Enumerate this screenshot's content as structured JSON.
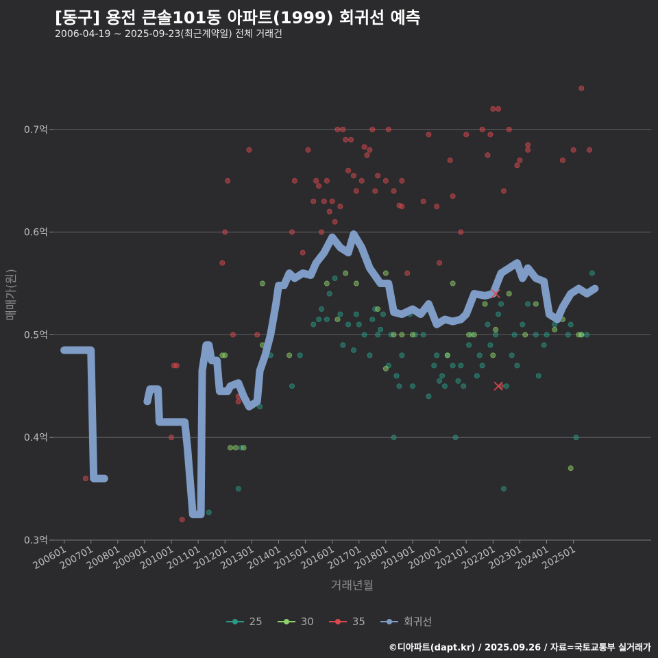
{
  "header": {
    "title": "[동구] 용전 큰솔101동 아파트(1999) 회귀선 예측",
    "subtitle": "2006-04-19 ~ 2025-09-23(최근계약일) 전체 거래건"
  },
  "caption": "©디아파트(dapt.kr) / 2025.09.26 / 자료=국토교통부 실거래가",
  "colors": {
    "background": "#2b2b2d",
    "grid": "#5a5a5c",
    "s25": "#2a9a86",
    "s30": "#8fd16a",
    "s35": "#d94a4f",
    "regression": "#7e9cc6"
  },
  "chart_data": {
    "type": "scatter",
    "xlabel": "거래년월",
    "ylabel": "매매가(원)",
    "x_range": [
      2005.6,
      2027.9
    ],
    "ylim": [
      0.3,
      0.77
    ],
    "grid": "horizontal",
    "legend_position": "bottom",
    "y_ticks": [
      {
        "value": 0.3,
        "label": "0.3억"
      },
      {
        "value": 0.4,
        "label": "0.4억"
      },
      {
        "value": 0.5,
        "label": "0.5억"
      },
      {
        "value": 0.6,
        "label": "0.6억"
      },
      {
        "value": 0.7,
        "label": "0.7억"
      }
    ],
    "x_ticks": [
      {
        "value": 2006.0,
        "label": "200601"
      },
      {
        "value": 2007.0,
        "label": "200701"
      },
      {
        "value": 2008.0,
        "label": "200801"
      },
      {
        "value": 2009.0,
        "label": "200901"
      },
      {
        "value": 2010.0,
        "label": "201001"
      },
      {
        "value": 2011.0,
        "label": "201101"
      },
      {
        "value": 2012.0,
        "label": "201201"
      },
      {
        "value": 2013.0,
        "label": "201301"
      },
      {
        "value": 2014.0,
        "label": "201401"
      },
      {
        "value": 2015.0,
        "label": "201501"
      },
      {
        "value": 2016.0,
        "label": "201601"
      },
      {
        "value": 2017.0,
        "label": "201701"
      },
      {
        "value": 2018.0,
        "label": "201801"
      },
      {
        "value": 2019.0,
        "label": "201901"
      },
      {
        "value": 2020.0,
        "label": "202001"
      },
      {
        "value": 2021.0,
        "label": "202101"
      },
      {
        "value": 2022.0,
        "label": "202201"
      },
      {
        "value": 2023.0,
        "label": "202301"
      },
      {
        "value": 2024.0,
        "label": "202401"
      },
      {
        "value": 2025.0,
        "label": "202501"
      }
    ],
    "legend": [
      {
        "key": "s25",
        "label": "25"
      },
      {
        "key": "s30",
        "label": "30"
      },
      {
        "key": "s35",
        "label": "35"
      },
      {
        "key": "regression",
        "label": "회귀선"
      }
    ],
    "series": [
      {
        "name": "25",
        "points": [
          [
            2011.4,
            0.327
          ],
          [
            2012.5,
            0.35
          ],
          [
            2012.6,
            0.39
          ],
          [
            2013.3,
            0.43
          ],
          [
            2013.7,
            0.48
          ],
          [
            2014.5,
            0.45
          ],
          [
            2014.8,
            0.48
          ],
          [
            2015.3,
            0.51
          ],
          [
            2015.5,
            0.515
          ],
          [
            2015.6,
            0.525
          ],
          [
            2015.8,
            0.515
          ],
          [
            2015.9,
            0.54
          ],
          [
            2016.1,
            0.555
          ],
          [
            2016.3,
            0.52
          ],
          [
            2016.4,
            0.49
          ],
          [
            2016.6,
            0.51
          ],
          [
            2016.8,
            0.485
          ],
          [
            2016.9,
            0.52
          ],
          [
            2017.0,
            0.51
          ],
          [
            2017.2,
            0.5
          ],
          [
            2017.4,
            0.48
          ],
          [
            2017.5,
            0.515
          ],
          [
            2017.6,
            0.525
          ],
          [
            2017.7,
            0.5
          ],
          [
            2017.8,
            0.505
          ],
          [
            2017.9,
            0.52
          ],
          [
            2018.1,
            0.47
          ],
          [
            2018.2,
            0.5
          ],
          [
            2018.3,
            0.4
          ],
          [
            2018.4,
            0.46
          ],
          [
            2018.5,
            0.45
          ],
          [
            2018.6,
            0.48
          ],
          [
            2018.9,
            0.52
          ],
          [
            2019.0,
            0.45
          ],
          [
            2019.1,
            0.5
          ],
          [
            2019.4,
            0.5
          ],
          [
            2019.6,
            0.44
          ],
          [
            2019.8,
            0.47
          ],
          [
            2019.9,
            0.48
          ],
          [
            2020.0,
            0.455
          ],
          [
            2020.1,
            0.46
          ],
          [
            2020.2,
            0.45
          ],
          [
            2020.3,
            0.48
          ],
          [
            2020.5,
            0.47
          ],
          [
            2020.6,
            0.4
          ],
          [
            2020.7,
            0.455
          ],
          [
            2020.8,
            0.47
          ],
          [
            2020.9,
            0.45
          ],
          [
            2021.1,
            0.49
          ],
          [
            2021.2,
            0.5
          ],
          [
            2021.4,
            0.46
          ],
          [
            2021.5,
            0.48
          ],
          [
            2021.6,
            0.47
          ],
          [
            2021.8,
            0.51
          ],
          [
            2021.9,
            0.49
          ],
          [
            2022.1,
            0.5
          ],
          [
            2022.2,
            0.52
          ],
          [
            2022.3,
            0.53
          ],
          [
            2022.4,
            0.35
          ],
          [
            2022.5,
            0.45
          ],
          [
            2022.7,
            0.48
          ],
          [
            2022.8,
            0.5
          ],
          [
            2022.9,
            0.47
          ],
          [
            2023.1,
            0.51
          ],
          [
            2023.3,
            0.53
          ],
          [
            2023.6,
            0.5
          ],
          [
            2023.7,
            0.46
          ],
          [
            2023.9,
            0.49
          ],
          [
            2024.0,
            0.5
          ],
          [
            2024.3,
            0.51
          ],
          [
            2024.5,
            0.52
          ],
          [
            2024.8,
            0.5
          ],
          [
            2024.9,
            0.51
          ],
          [
            2025.1,
            0.4
          ],
          [
            2025.3,
            0.5
          ],
          [
            2025.5,
            0.5
          ],
          [
            2025.7,
            0.56
          ]
        ]
      },
      {
        "name": "30",
        "points": [
          [
            2011.9,
            0.48
          ],
          [
            2012.0,
            0.48
          ],
          [
            2012.2,
            0.39
          ],
          [
            2012.4,
            0.39
          ],
          [
            2012.7,
            0.39
          ],
          [
            2013.4,
            0.49
          ],
          [
            2013.4,
            0.55
          ],
          [
            2014.4,
            0.48
          ],
          [
            2015.8,
            0.55
          ],
          [
            2016.2,
            0.515
          ],
          [
            2016.5,
            0.56
          ],
          [
            2016.9,
            0.55
          ],
          [
            2017.7,
            0.525
          ],
          [
            2018.0,
            0.56
          ],
          [
            2018.0,
            0.467
          ],
          [
            2018.3,
            0.5
          ],
          [
            2018.6,
            0.5
          ],
          [
            2019.0,
            0.5
          ],
          [
            2020.3,
            0.48
          ],
          [
            2020.5,
            0.55
          ],
          [
            2021.1,
            0.5
          ],
          [
            2021.3,
            0.5
          ],
          [
            2021.7,
            0.53
          ],
          [
            2022.0,
            0.48
          ],
          [
            2022.1,
            0.505
          ],
          [
            2022.6,
            0.54
          ],
          [
            2023.2,
            0.5
          ],
          [
            2023.6,
            0.53
          ],
          [
            2024.3,
            0.505
          ],
          [
            2024.6,
            0.515
          ],
          [
            2024.9,
            0.37
          ],
          [
            2025.2,
            0.5
          ],
          [
            2025.3,
            0.5
          ]
        ]
      },
      {
        "name": "35",
        "points": [
          [
            2006.4,
            0.486
          ],
          [
            2006.8,
            0.36
          ],
          [
            2010.0,
            0.4
          ],
          [
            2010.1,
            0.47
          ],
          [
            2010.2,
            0.47
          ],
          [
            2010.4,
            0.32
          ],
          [
            2011.9,
            0.57
          ],
          [
            2012.0,
            0.6
          ],
          [
            2012.1,
            0.65
          ],
          [
            2012.3,
            0.5
          ],
          [
            2012.5,
            0.44
          ],
          [
            2012.5,
            0.435
          ],
          [
            2012.9,
            0.68
          ],
          [
            2013.2,
            0.5
          ],
          [
            2014.5,
            0.6
          ],
          [
            2014.6,
            0.65
          ],
          [
            2014.9,
            0.58
          ],
          [
            2015.1,
            0.68
          ],
          [
            2015.3,
            0.63
          ],
          [
            2015.4,
            0.65
          ],
          [
            2015.5,
            0.645
          ],
          [
            2015.6,
            0.6
          ],
          [
            2015.7,
            0.63
          ],
          [
            2015.8,
            0.65
          ],
          [
            2015.9,
            0.62
          ],
          [
            2016.0,
            0.63
          ],
          [
            2016.1,
            0.61
          ],
          [
            2016.2,
            0.7
          ],
          [
            2016.3,
            0.625
          ],
          [
            2016.4,
            0.7
          ],
          [
            2016.5,
            0.69
          ],
          [
            2016.6,
            0.66
          ],
          [
            2016.7,
            0.69
          ],
          [
            2016.8,
            0.655
          ],
          [
            2016.9,
            0.64
          ],
          [
            2017.1,
            0.65
          ],
          [
            2017.2,
            0.683
          ],
          [
            2017.3,
            0.675
          ],
          [
            2017.4,
            0.68
          ],
          [
            2017.5,
            0.7
          ],
          [
            2017.6,
            0.64
          ],
          [
            2017.7,
            0.655
          ],
          [
            2018.0,
            0.65
          ],
          [
            2018.1,
            0.7
          ],
          [
            2018.3,
            0.64
          ],
          [
            2018.5,
            0.626
          ],
          [
            2018.6,
            0.625
          ],
          [
            2018.6,
            0.65
          ],
          [
            2018.8,
            0.56
          ],
          [
            2019.4,
            0.63
          ],
          [
            2019.6,
            0.695
          ],
          [
            2019.9,
            0.625
          ],
          [
            2020.0,
            0.57
          ],
          [
            2020.4,
            0.67
          ],
          [
            2020.5,
            0.635
          ],
          [
            2020.8,
            0.6
          ],
          [
            2021.0,
            0.695
          ],
          [
            2021.6,
            0.7
          ],
          [
            2021.8,
            0.675
          ],
          [
            2021.9,
            0.695
          ],
          [
            2022.0,
            0.72
          ],
          [
            2022.2,
            0.72
          ],
          [
            2022.3,
            0.45
          ],
          [
            2022.4,
            0.64
          ],
          [
            2022.6,
            0.7
          ],
          [
            2022.9,
            0.665
          ],
          [
            2023.0,
            0.67
          ],
          [
            2023.3,
            0.68
          ],
          [
            2023.3,
            0.685
          ],
          [
            2024.6,
            0.67
          ],
          [
            2025.0,
            0.68
          ],
          [
            2025.3,
            0.74
          ],
          [
            2025.6,
            0.68
          ]
        ]
      }
    ],
    "crosses": [
      [
        2022.1,
        0.54
      ],
      [
        2022.2,
        0.45
      ]
    ],
    "regression": [
      [
        [
          2006.0,
          0.485
        ],
        [
          2007.0,
          0.485
        ],
        [
          2007.1,
          0.36
        ],
        [
          2007.5,
          0.36
        ]
      ],
      [
        [
          2009.1,
          0.435
        ],
        [
          2009.2,
          0.447
        ],
        [
          2009.5,
          0.447
        ],
        [
          2009.55,
          0.415
        ],
        [
          2010.5,
          0.415
        ],
        [
          2010.6,
          0.39
        ],
        [
          2010.8,
          0.325
        ],
        [
          2011.1,
          0.325
        ],
        [
          2011.15,
          0.465
        ],
        [
          2011.3,
          0.49
        ],
        [
          2011.4,
          0.49
        ],
        [
          2011.5,
          0.475
        ],
        [
          2011.7,
          0.475
        ],
        [
          2011.8,
          0.445
        ],
        [
          2012.1,
          0.445
        ],
        [
          2012.2,
          0.45
        ],
        [
          2012.5,
          0.453
        ],
        [
          2012.7,
          0.44
        ],
        [
          2012.9,
          0.43
        ],
        [
          2013.2,
          0.435
        ],
        [
          2013.3,
          0.465
        ],
        [
          2013.5,
          0.48
        ],
        [
          2013.7,
          0.5
        ],
        [
          2013.9,
          0.53
        ],
        [
          2014.0,
          0.548
        ],
        [
          2014.2,
          0.548
        ],
        [
          2014.4,
          0.56
        ],
        [
          2014.6,
          0.555
        ],
        [
          2014.9,
          0.56
        ],
        [
          2015.2,
          0.558
        ],
        [
          2015.4,
          0.57
        ],
        [
          2015.7,
          0.58
        ],
        [
          2016.0,
          0.595
        ],
        [
          2016.3,
          0.585
        ],
        [
          2016.6,
          0.58
        ],
        [
          2016.8,
          0.598
        ],
        [
          2017.1,
          0.585
        ],
        [
          2017.4,
          0.565
        ],
        [
          2017.8,
          0.55
        ],
        [
          2018.1,
          0.55
        ],
        [
          2018.3,
          0.522
        ],
        [
          2018.6,
          0.52
        ],
        [
          2019.0,
          0.525
        ],
        [
          2019.3,
          0.52
        ],
        [
          2019.6,
          0.53
        ],
        [
          2019.9,
          0.51
        ],
        [
          2020.2,
          0.515
        ],
        [
          2020.5,
          0.513
        ],
        [
          2020.8,
          0.515
        ],
        [
          2021.0,
          0.52
        ],
        [
          2021.3,
          0.54
        ],
        [
          2021.7,
          0.538
        ],
        [
          2022.0,
          0.54
        ],
        [
          2022.3,
          0.56
        ],
        [
          2022.6,
          0.565
        ],
        [
          2022.9,
          0.57
        ],
        [
          2023.1,
          0.555
        ],
        [
          2023.3,
          0.565
        ],
        [
          2023.6,
          0.555
        ],
        [
          2023.9,
          0.552
        ],
        [
          2024.1,
          0.52
        ],
        [
          2024.4,
          0.515
        ],
        [
          2024.6,
          0.527
        ],
        [
          2024.9,
          0.54
        ],
        [
          2025.2,
          0.545
        ],
        [
          2025.5,
          0.54
        ],
        [
          2025.8,
          0.545
        ]
      ]
    ]
  }
}
